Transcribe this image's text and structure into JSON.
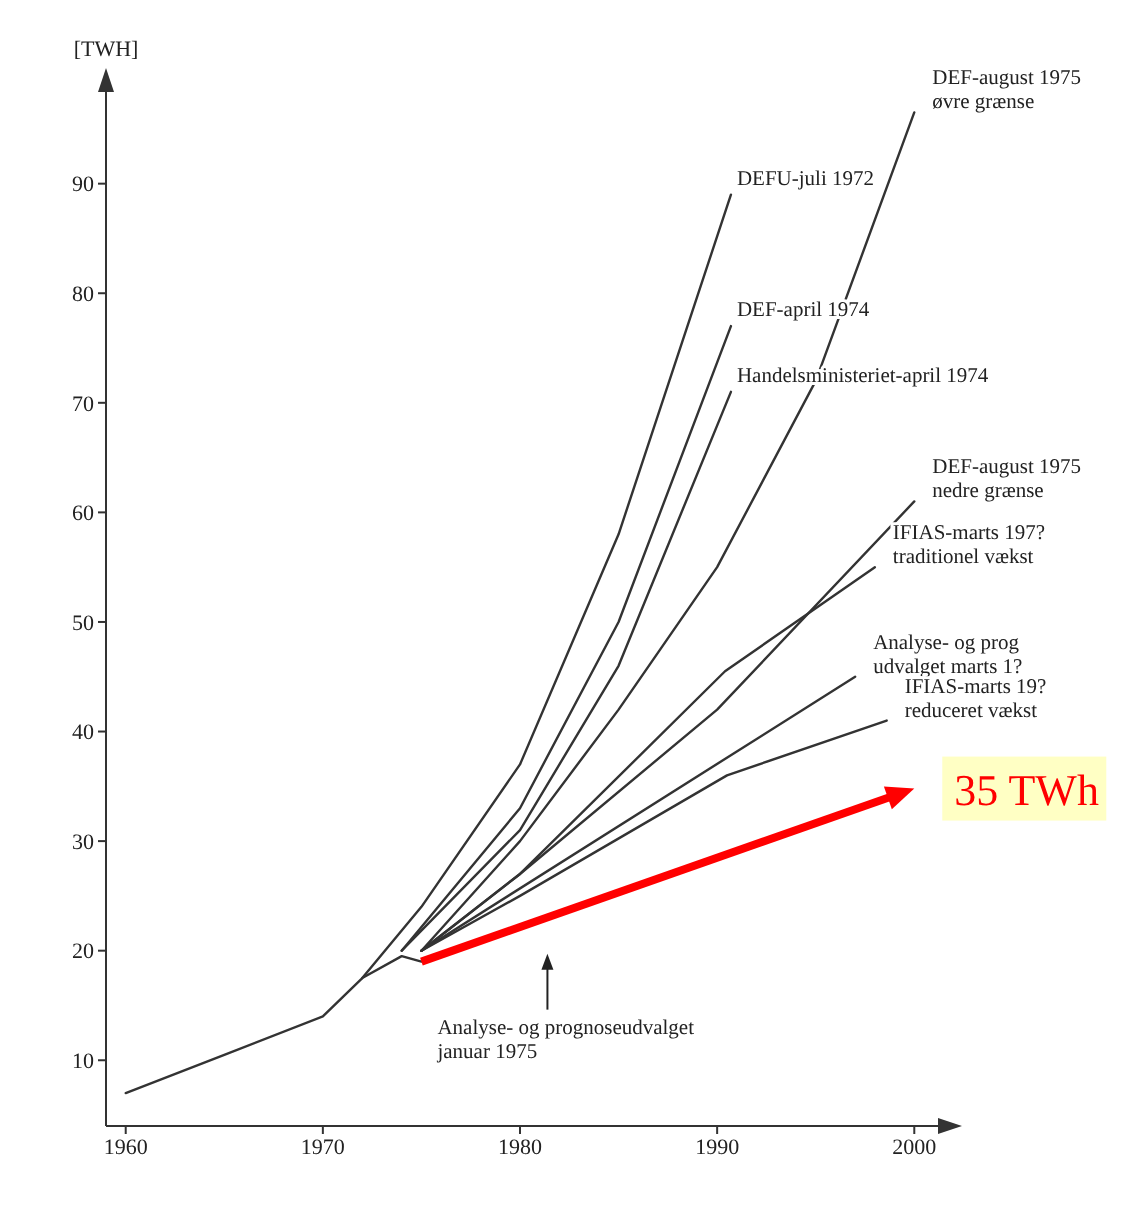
{
  "chart_data": {
    "type": "line",
    "ylabel": "[TWH]",
    "xlim": [
      1959,
      2001
    ],
    "ylim": [
      4,
      98
    ],
    "xticks": [
      1960,
      1970,
      1980,
      1990,
      2000
    ],
    "yticks": [
      10,
      20,
      30,
      40,
      50,
      60,
      70,
      80,
      90
    ],
    "marker": "none",
    "line_style": "solid",
    "series": [
      {
        "color": "#333333",
        "x": [
          1960,
          1965,
          1970,
          1972,
          1974,
          1975
        ],
        "values": [
          7,
          10.5,
          14,
          17.5,
          19.5,
          19
        ]
      },
      {
        "name": "DEFU-juli 1972",
        "color": "#333333",
        "x": [
          1972,
          1975,
          1980,
          1985,
          1990.7
        ],
        "values": [
          17.5,
          24,
          37,
          58,
          89
        ]
      },
      {
        "name": "DEF-april 1974",
        "color": "#333333",
        "x": [
          1974,
          1980,
          1985,
          1990.7
        ],
        "values": [
          20,
          33,
          50,
          77
        ]
      },
      {
        "name": "Handelsministeriet-april 1974",
        "color": "#333333",
        "x": [
          1974,
          1980,
          1985,
          1990.7
        ],
        "values": [
          20,
          31,
          46,
          71
        ]
      },
      {
        "name": "DEF-august 1975 øvre grænse",
        "color": "#333333",
        "x": [
          1975,
          1980,
          1985,
          1990,
          1995,
          2000
        ],
        "values": [
          20,
          30,
          42,
          55,
          72,
          96.5
        ]
      },
      {
        "name": "DEF-august 1975 nedre grænse",
        "color": "#333333",
        "x": [
          1975,
          1980,
          1990,
          2000
        ],
        "values": [
          20,
          27,
          42,
          61
        ]
      },
      {
        "name": "IFIAS-marts 197? traditionel vækst",
        "color": "#333333",
        "x": [
          1975,
          1980,
          1990.4,
          1998
        ],
        "values": [
          20,
          27,
          45.5,
          55
        ]
      },
      {
        "name": "Analyse- og prog udvalget marts 1?",
        "color": "#333333",
        "x": [
          1975,
          1997
        ],
        "values": [
          20,
          45
        ]
      },
      {
        "name": "IFIAS-marts 19? reduceret vækst",
        "color": "#333333",
        "x": [
          1975,
          1980,
          1990.5,
          1998.6
        ],
        "values": [
          20,
          25,
          36,
          41
        ]
      }
    ],
    "annotations": [
      "Analyse- og prognoseudvalget januar 1975",
      "35 TWh"
    ]
  }
}
